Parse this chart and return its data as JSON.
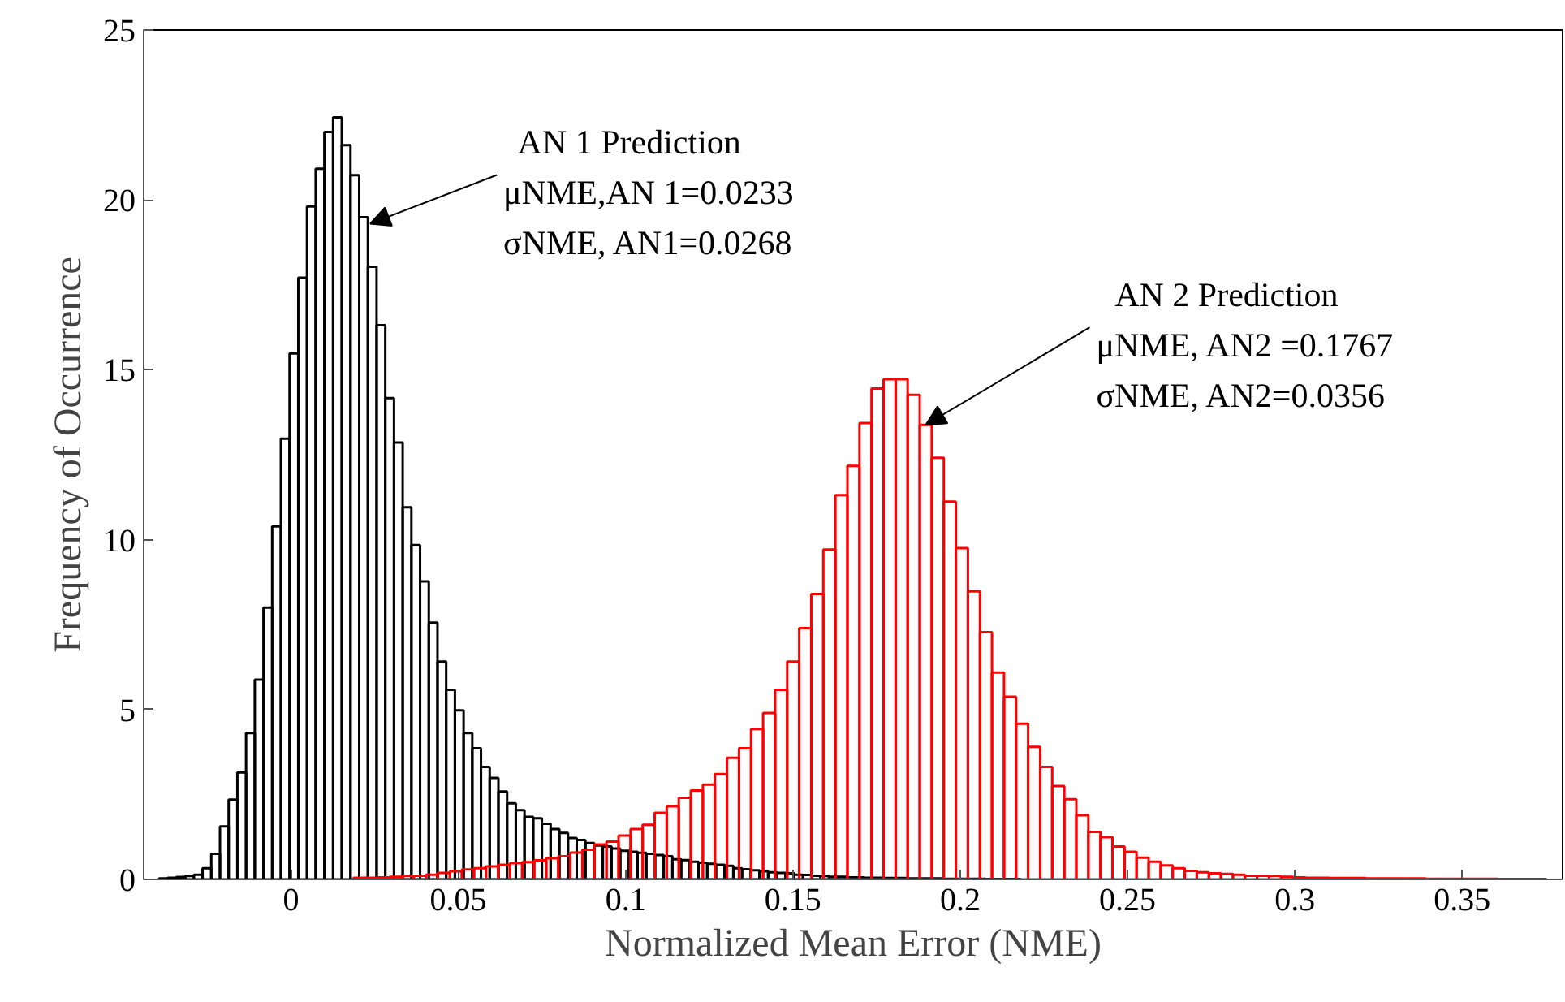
{
  "chart_data": {
    "type": "bar",
    "xlabel": "Normalized Mean Error (NME)",
    "ylabel": "Frequency of Occurrence",
    "xlim": [
      -0.044,
      0.38
    ],
    "ylim": [
      0,
      25
    ],
    "xticks": [
      0,
      0.05,
      0.1,
      0.15,
      0.2,
      0.25,
      0.3,
      0.35
    ],
    "yticks": [
      0,
      5,
      10,
      15,
      20,
      25
    ],
    "series": [
      {
        "color": "#000000",
        "x": [
          -0.0381,
          -0.0355,
          -0.0329,
          -0.0303,
          -0.0277,
          -0.0251,
          -0.0225,
          -0.0199,
          -0.0173,
          -0.0147,
          -0.0121,
          -0.0095,
          -0.0069,
          -0.0043,
          -0.0017,
          0.0009,
          0.0035,
          0.0061,
          0.0087,
          0.0113,
          0.0139,
          0.0165,
          0.0191,
          0.0217,
          0.0243,
          0.0269,
          0.0295,
          0.0321,
          0.0347,
          0.0373,
          0.0399,
          0.0425,
          0.0451,
          0.0477,
          0.0503,
          0.0529,
          0.0555,
          0.0581,
          0.0607,
          0.0633,
          0.0659,
          0.0685,
          0.0711,
          0.0737,
          0.0763,
          0.0789,
          0.0815,
          0.0841,
          0.0867,
          0.0893,
          0.0919,
          0.0945,
          0.0971,
          0.0997,
          0.1023,
          0.1049,
          0.1075,
          0.1101,
          0.1127,
          0.1153,
          0.1179,
          0.1205,
          0.1231,
          0.1257,
          0.1283,
          0.1309,
          0.1335,
          0.1361,
          0.1387,
          0.1413,
          0.1439,
          0.1465,
          0.1491,
          0.1517,
          0.1543,
          0.1569,
          0.1595,
          0.1621,
          0.1647,
          0.1673,
          0.1699,
          0.1725,
          0.1751,
          0.1777,
          0.1803,
          0.1829,
          0.1855,
          0.1881,
          0.1907,
          0.1933,
          0.1959,
          0.1985,
          0.2011,
          0.2037,
          0.2063,
          0.2089,
          0.2115,
          0.2141,
          0.2167
        ],
        "values": [
          0.03,
          0.05,
          0.07,
          0.1,
          0.14,
          0.33,
          0.75,
          1.56,
          2.35,
          3.15,
          4.31,
          5.88,
          8.0,
          10.39,
          12.97,
          15.48,
          17.71,
          19.81,
          20.92,
          22.0,
          22.43,
          21.61,
          20.73,
          19.49,
          18.03,
          16.31,
          14.17,
          12.86,
          10.95,
          9.84,
          8.77,
          7.56,
          6.41,
          5.58,
          4.98,
          4.31,
          3.86,
          3.31,
          2.99,
          2.59,
          2.24,
          2.04,
          1.84,
          1.8,
          1.64,
          1.48,
          1.37,
          1.22,
          1.16,
          1.07,
          1.0,
          0.97,
          0.91,
          0.84,
          0.81,
          0.78,
          0.75,
          0.72,
          0.68,
          0.59,
          0.57,
          0.52,
          0.49,
          0.46,
          0.43,
          0.4,
          0.33,
          0.3,
          0.27,
          0.24,
          0.21,
          0.19,
          0.18,
          0.14,
          0.13,
          0.11,
          0.1,
          0.08,
          0.08,
          0.06,
          0.06,
          0.05,
          0.05,
          0.04,
          0.04,
          0.04,
          0.03,
          0.03,
          0.03,
          0.03,
          0.02,
          0.02,
          0.02,
          0.02,
          0.02,
          0.01,
          0.01,
          0.01,
          0.01
        ]
      },
      {
        "color": "#ff0000",
        "x": [
          0.0205,
          0.0241,
          0.0277,
          0.0313,
          0.0349,
          0.0385,
          0.0421,
          0.0457,
          0.0493,
          0.0529,
          0.0565,
          0.0601,
          0.0637,
          0.0673,
          0.0709,
          0.0745,
          0.0781,
          0.0817,
          0.0853,
          0.0889,
          0.0925,
          0.0961,
          0.0997,
          0.1033,
          0.1069,
          0.1105,
          0.1141,
          0.1177,
          0.1213,
          0.1249,
          0.1285,
          0.1321,
          0.1357,
          0.1393,
          0.1429,
          0.1465,
          0.1501,
          0.1537,
          0.1573,
          0.1609,
          0.1645,
          0.1681,
          0.1717,
          0.1753,
          0.1789,
          0.1825,
          0.1861,
          0.1897,
          0.1933,
          0.1969,
          0.2005,
          0.2041,
          0.2077,
          0.2113,
          0.2149,
          0.2185,
          0.2221,
          0.2257,
          0.2293,
          0.2329,
          0.2365,
          0.2401,
          0.2437,
          0.2473,
          0.2509,
          0.2545,
          0.2581,
          0.2617,
          0.2653,
          0.2689,
          0.2725,
          0.2761,
          0.2797,
          0.2833,
          0.2869,
          0.2905,
          0.2941,
          0.2977,
          0.3013,
          0.3049,
          0.3085,
          0.3121,
          0.3157,
          0.3193,
          0.3229,
          0.3265,
          0.3301,
          0.3337,
          0.3373,
          0.3409,
          0.3445,
          0.3481,
          0.3517,
          0.3553,
          0.3589,
          0.3625,
          0.3661,
          0.3697,
          0.3733
        ],
        "values": [
          0.05,
          0.05,
          0.06,
          0.08,
          0.1,
          0.11,
          0.14,
          0.19,
          0.24,
          0.29,
          0.33,
          0.38,
          0.43,
          0.48,
          0.51,
          0.56,
          0.62,
          0.68,
          0.79,
          0.87,
          1.03,
          1.11,
          1.29,
          1.48,
          1.61,
          1.96,
          2.15,
          2.4,
          2.62,
          2.79,
          3.1,
          3.58,
          3.86,
          4.43,
          4.9,
          5.58,
          6.41,
          7.4,
          8.4,
          9.71,
          11.31,
          12.17,
          13.43,
          14.45,
          14.72,
          14.72,
          14.26,
          13.38,
          12.41,
          11.12,
          9.75,
          8.48,
          7.28,
          6.09,
          5.38,
          4.58,
          3.9,
          3.31,
          2.75,
          2.36,
          1.89,
          1.4,
          1.24,
          0.97,
          0.81,
          0.64,
          0.52,
          0.41,
          0.33,
          0.25,
          0.21,
          0.18,
          0.16,
          0.14,
          0.11,
          0.11,
          0.1,
          0.08,
          0.06,
          0.05,
          0.05,
          0.04,
          0.04,
          0.04,
          0.03,
          0.03,
          0.03,
          0.03,
          0.03,
          0.02,
          0.02,
          0.02,
          0.02,
          0.02,
          0.02,
          0.01,
          0.01,
          0.01,
          0.01
        ]
      }
    ],
    "annotations": [
      {
        "text": "AN 1 Prediction\nμNME,AN 1=0.0233\nσNME, AN1=0.0268",
        "x": 0.0237,
        "y": 19.3
      },
      {
        "text": "AN 2 Prediction\nμNME, AN2 =0.1767\nσNME, AN2=0.0356",
        "x": 0.1897,
        "y": 13.38
      }
    ]
  }
}
